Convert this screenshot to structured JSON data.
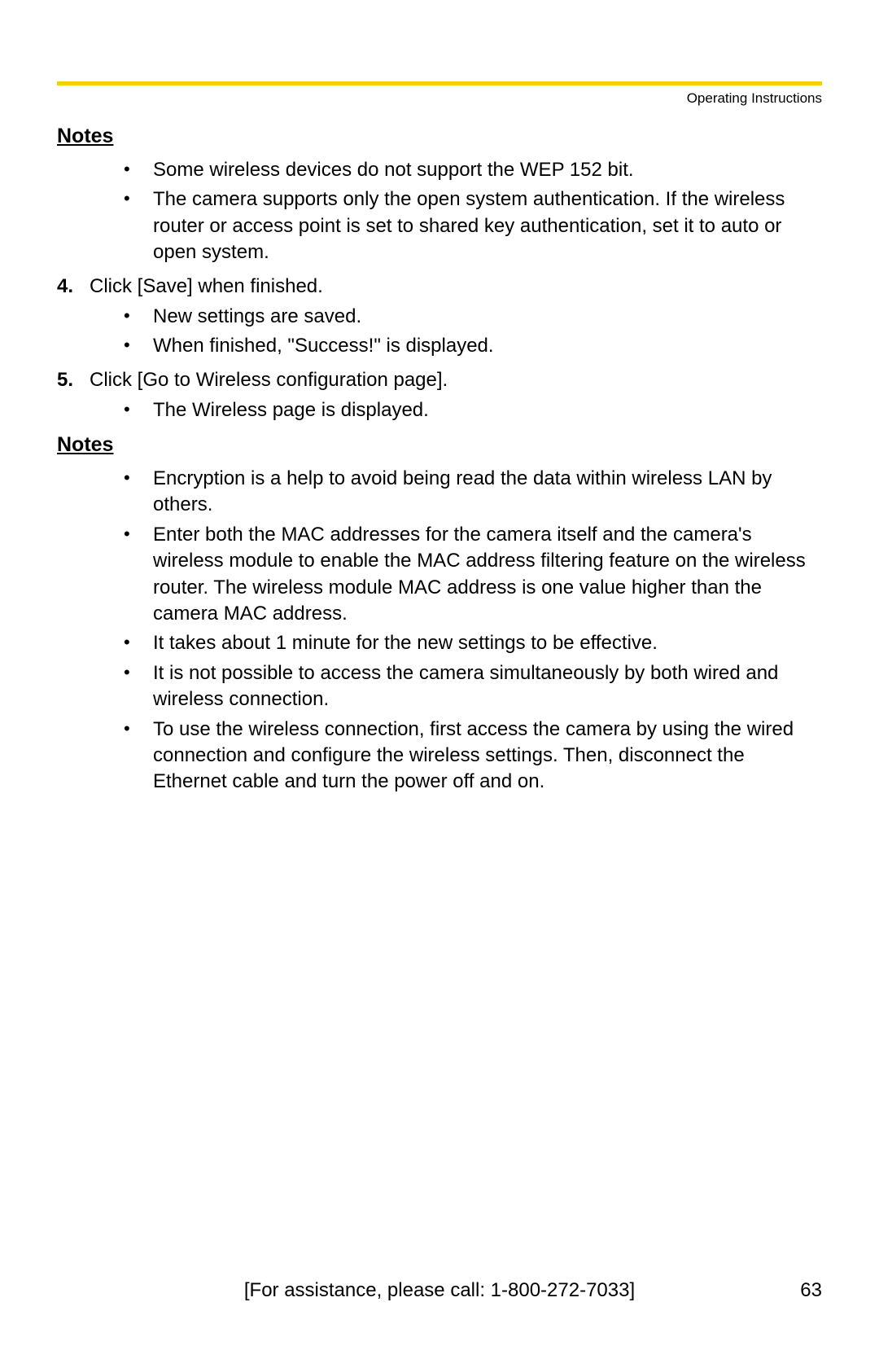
{
  "header": {
    "rule_color": "#f2d200",
    "label": "Operating Instructions"
  },
  "sections": {
    "notes1": {
      "heading": "Notes",
      "bullets": [
        "Some wireless devices do not support the WEP 152 bit.",
        "The camera supports only the open system authentication. If the wireless router or access point is set to shared key authentication, set it to auto or open system."
      ]
    },
    "step4": {
      "num": "4.",
      "text": "Click [Save] when finished.",
      "bullets": [
        "New settings are saved.",
        "When finished, \"Success!\" is displayed."
      ]
    },
    "step5": {
      "num": "5.",
      "text": "Click [Go to Wireless configuration page].",
      "bullets": [
        "The Wireless page is displayed."
      ]
    },
    "notes2": {
      "heading": "Notes",
      "bullets": [
        "Encryption is a help to avoid being read the data within wireless LAN by others.",
        "Enter both the MAC addresses for the camera itself and the camera's wireless module to enable the MAC address filtering feature on the wireless router. The wireless module MAC address is one value higher than the camera MAC address.",
        "It takes about 1 minute for the new settings to be effective.",
        "It is not possible to access the camera simultaneously by both wired and wireless connection.",
        "To use the wireless connection, first access the camera by using the wired connection and configure the wireless settings. Then, disconnect the Ethernet cable and turn the power off and on."
      ]
    }
  },
  "footer": {
    "assist": "[For assistance, please call: 1-800-272-7033]",
    "page_number": "63"
  }
}
